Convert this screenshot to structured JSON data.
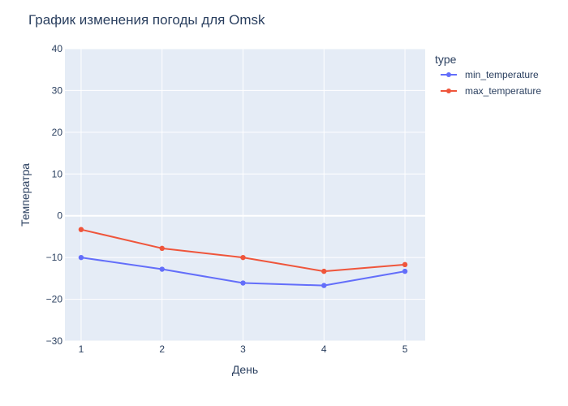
{
  "chart_data": {
    "type": "line",
    "title": "График изменения погоды для Omsk",
    "xlabel": "День",
    "ylabel": "Температра",
    "x": [
      1,
      2,
      3,
      4,
      5
    ],
    "xlim": [
      0.8,
      5.25
    ],
    "ylim": [
      -30,
      40
    ],
    "xticks": [
      1,
      2,
      3,
      4,
      5
    ],
    "yticks": [
      40,
      30,
      20,
      10,
      0,
      -10,
      -20,
      -30
    ],
    "ytick_labels": [
      "40",
      "30",
      "20",
      "10",
      "0",
      "−10",
      "−20",
      "−30"
    ],
    "grid": true,
    "legend": {
      "title": "type",
      "position": "right"
    },
    "series": [
      {
        "name": "min_temperature",
        "color": "#636efa",
        "values": [
          -10,
          -12.8,
          -16.1,
          -16.7,
          -13.3
        ]
      },
      {
        "name": "max_temperature",
        "color": "#ef553b",
        "values": [
          -3.3,
          -7.8,
          -10,
          -13.3,
          -11.7
        ]
      }
    ]
  }
}
